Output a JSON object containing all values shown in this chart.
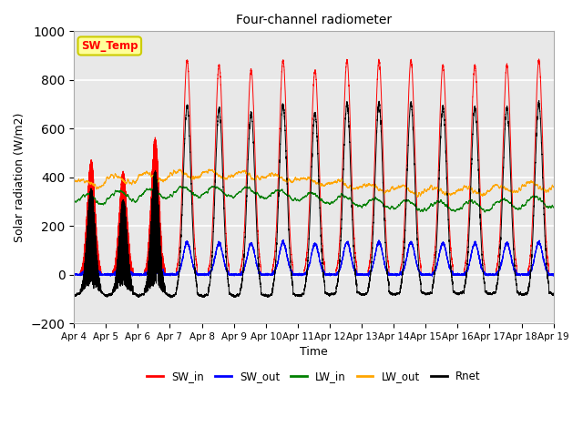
{
  "title": "Four-channel radiometer",
  "xlabel": "Time",
  "ylabel": "Solar radiation (W/m2)",
  "ylim": [
    -200,
    1000
  ],
  "n_days": 15,
  "colors": {
    "SW_in": "red",
    "SW_out": "blue",
    "LW_in": "green",
    "LW_out": "orange",
    "Rnet": "black"
  },
  "legend_label": "SW_Temp",
  "legend_box_color": "#FFFF99",
  "legend_box_edge": "#CCCC00",
  "x_tick_labels": [
    "Apr 4",
    "Apr 5",
    "Apr 6",
    "Apr 7",
    "Apr 8",
    "Apr 9",
    "Apr 10",
    "Apr 11",
    "Apr 12",
    "Apr 13",
    "Apr 14",
    "Apr 15",
    "Apr 16",
    "Apr 17",
    "Apr 18",
    "Apr 19"
  ],
  "background_color": "#e8e8e8",
  "grid_color": "white"
}
